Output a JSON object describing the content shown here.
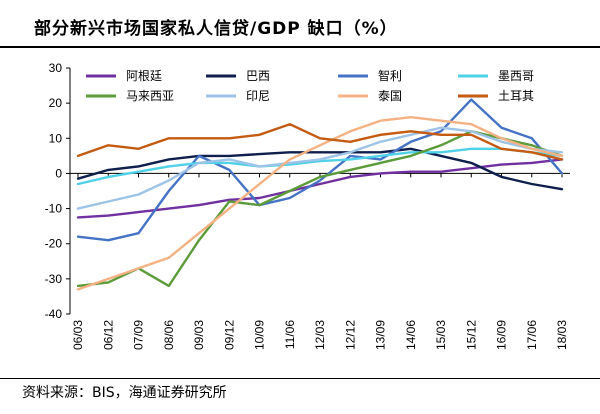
{
  "chart_data": {
    "type": "line",
    "title": "部分新兴市场国家私人信贷/GDP 缺口（%）",
    "xlabel": "",
    "ylabel": "",
    "ylim": [
      -40,
      30
    ],
    "yticks": [
      30,
      20,
      10,
      0,
      -10,
      -20,
      -30,
      -40
    ],
    "grid": false,
    "legend": "top, 4 columns",
    "x_tick_labels": [
      "06/03",
      "06/12",
      "07/09",
      "08/06",
      "09/03",
      "09/12",
      "10/09",
      "11/06",
      "12/03",
      "12/12",
      "13/09",
      "14/06",
      "15/03",
      "15/12",
      "16/09",
      "17/06",
      "18/03"
    ],
    "x": [
      "06/03",
      "06/12",
      "07/09",
      "08/06",
      "09/03",
      "09/12",
      "10/09",
      "11/06",
      "12/03",
      "12/12",
      "13/09",
      "14/06",
      "15/03",
      "15/12",
      "16/09",
      "17/06",
      "18/03"
    ],
    "series": [
      {
        "name": "阿根廷",
        "color": "#7030A0",
        "values": [
          -12.5,
          -12,
          -11,
          -10,
          -9,
          -7.5,
          -7,
          -5,
          -3,
          -1,
          0,
          0.5,
          0.5,
          1.5,
          2.5,
          3,
          4
        ]
      },
      {
        "name": "巴西",
        "color": "#0F1F4D",
        "values": [
          -1.5,
          1,
          2,
          4,
          5,
          5,
          5.5,
          6,
          6,
          6,
          6,
          7,
          5,
          3,
          -1,
          -3,
          -4.5
        ]
      },
      {
        "name": "智利",
        "color": "#4472C4",
        "values": [
          -18,
          -19,
          -17,
          -5,
          5,
          1,
          -9,
          -7,
          -2,
          5,
          4,
          9,
          12,
          21,
          13,
          10,
          0
        ]
      },
      {
        "name": "墨西哥",
        "color": "#4FD1E8",
        "values": [
          -3,
          -1,
          0.5,
          2,
          3,
          3,
          2,
          2.5,
          3.5,
          4,
          5,
          6,
          6,
          7,
          7,
          6,
          5
        ]
      },
      {
        "name": "马来西亚",
        "color": "#5B9B3A",
        "values": [
          -32,
          -31,
          -27,
          -32,
          -19,
          -8,
          -9,
          -5,
          -1,
          1,
          3,
          5,
          8,
          12,
          10,
          8,
          5
        ]
      },
      {
        "name": "印尼",
        "color": "#9DC3E6",
        "values": [
          -10,
          -8,
          -6,
          -2,
          3,
          4,
          2,
          3,
          4,
          6,
          9,
          11,
          13,
          12,
          9,
          7,
          6
        ]
      },
      {
        "name": "泰国",
        "color": "#F4B183",
        "values": [
          -33,
          -30,
          -27,
          -24,
          -17,
          -10,
          -3,
          4,
          8,
          12,
          15,
          16,
          15,
          14,
          10,
          7,
          5
        ]
      },
      {
        "name": "土耳其",
        "color": "#C55A11",
        "values": [
          5,
          8,
          7,
          10,
          10,
          10,
          11,
          14,
          10,
          9,
          11,
          12,
          11,
          11,
          7,
          6,
          4
        ]
      }
    ]
  },
  "source_note": "资料来源：BIS，海通证券研究所"
}
